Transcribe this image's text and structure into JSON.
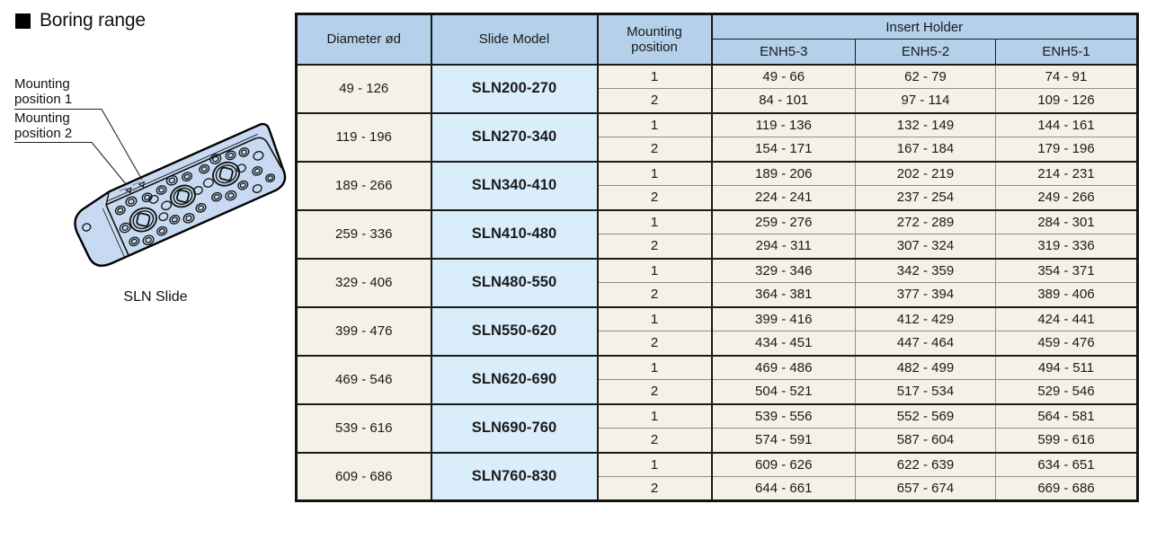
{
  "title": {
    "text": "Boring range"
  },
  "illustration": {
    "caption": "SLN Slide",
    "labels": [
      {
        "text": "Mounting position 1"
      },
      {
        "text": "Mounting position 2"
      }
    ]
  },
  "table": {
    "headers": {
      "diameter": "Diameter ød",
      "slide_model": "Slide Model",
      "mounting_position": "Mounting position",
      "insert_holder": "Insert Holder",
      "insert_columns": [
        "ENH5-3",
        "ENH5-2",
        "ENH5-1"
      ]
    },
    "groups": [
      {
        "diameter": "49 - 126",
        "model": "SLN200-270",
        "rows": [
          {
            "position": "1",
            "values": [
              "49 - 66",
              "62 - 79",
              "74 - 91"
            ]
          },
          {
            "position": "2",
            "values": [
              "84 - 101",
              "97 - 114",
              "109 - 126"
            ]
          }
        ]
      },
      {
        "diameter": "119 - 196",
        "model": "SLN270-340",
        "rows": [
          {
            "position": "1",
            "values": [
              "119 - 136",
              "132 - 149",
              "144 - 161"
            ]
          },
          {
            "position": "2",
            "values": [
              "154 - 171",
              "167 - 184",
              "179 - 196"
            ]
          }
        ]
      },
      {
        "diameter": "189 - 266",
        "model": "SLN340-410",
        "rows": [
          {
            "position": "1",
            "values": [
              "189 - 206",
              "202 - 219",
              "214 - 231"
            ]
          },
          {
            "position": "2",
            "values": [
              "224 - 241",
              "237 - 254",
              "249 - 266"
            ]
          }
        ]
      },
      {
        "diameter": "259 - 336",
        "model": "SLN410-480",
        "rows": [
          {
            "position": "1",
            "values": [
              "259 - 276",
              "272 - 289",
              "284 - 301"
            ]
          },
          {
            "position": "2",
            "values": [
              "294 - 311",
              "307 - 324",
              "319 - 336"
            ]
          }
        ]
      },
      {
        "diameter": "329 - 406",
        "model": "SLN480-550",
        "rows": [
          {
            "position": "1",
            "values": [
              "329 - 346",
              "342 - 359",
              "354 - 371"
            ]
          },
          {
            "position": "2",
            "values": [
              "364 - 381",
              "377 - 394",
              "389 - 406"
            ]
          }
        ]
      },
      {
        "diameter": "399 - 476",
        "model": "SLN550-620",
        "rows": [
          {
            "position": "1",
            "values": [
              "399 - 416",
              "412 - 429",
              "424 - 441"
            ]
          },
          {
            "position": "2",
            "values": [
              "434 - 451",
              "447 - 464",
              "459 - 476"
            ]
          }
        ]
      },
      {
        "diameter": "469 - 546",
        "model": "SLN620-690",
        "rows": [
          {
            "position": "1",
            "values": [
              "469 - 486",
              "482 - 499",
              "494 - 511"
            ]
          },
          {
            "position": "2",
            "values": [
              "504 - 521",
              "517 - 534",
              "529 - 546"
            ]
          }
        ]
      },
      {
        "diameter": "539 - 616",
        "model": "SLN690-760",
        "rows": [
          {
            "position": "1",
            "values": [
              "539 - 556",
              "552 - 569",
              "564 - 581"
            ]
          },
          {
            "position": "2",
            "values": [
              "574 - 591",
              "587 - 604",
              "599 - 616"
            ]
          }
        ]
      },
      {
        "diameter": "609 - 686",
        "model": "SLN760-830",
        "rows": [
          {
            "position": "1",
            "values": [
              "609 - 626",
              "622 - 639",
              "634 - 651"
            ]
          },
          {
            "position": "2",
            "values": [
              "644 - 661",
              "657 - 674",
              "669 - 686"
            ]
          }
        ]
      }
    ]
  },
  "colors": {
    "header_blue": "#b4d0ea",
    "model_blue": "#d9edfb",
    "cell_cream": "#f4f1e6",
    "slide_blue": "#c7daf2",
    "line_black": "#1a1a1a",
    "line_gray": "#8f8f8f"
  }
}
